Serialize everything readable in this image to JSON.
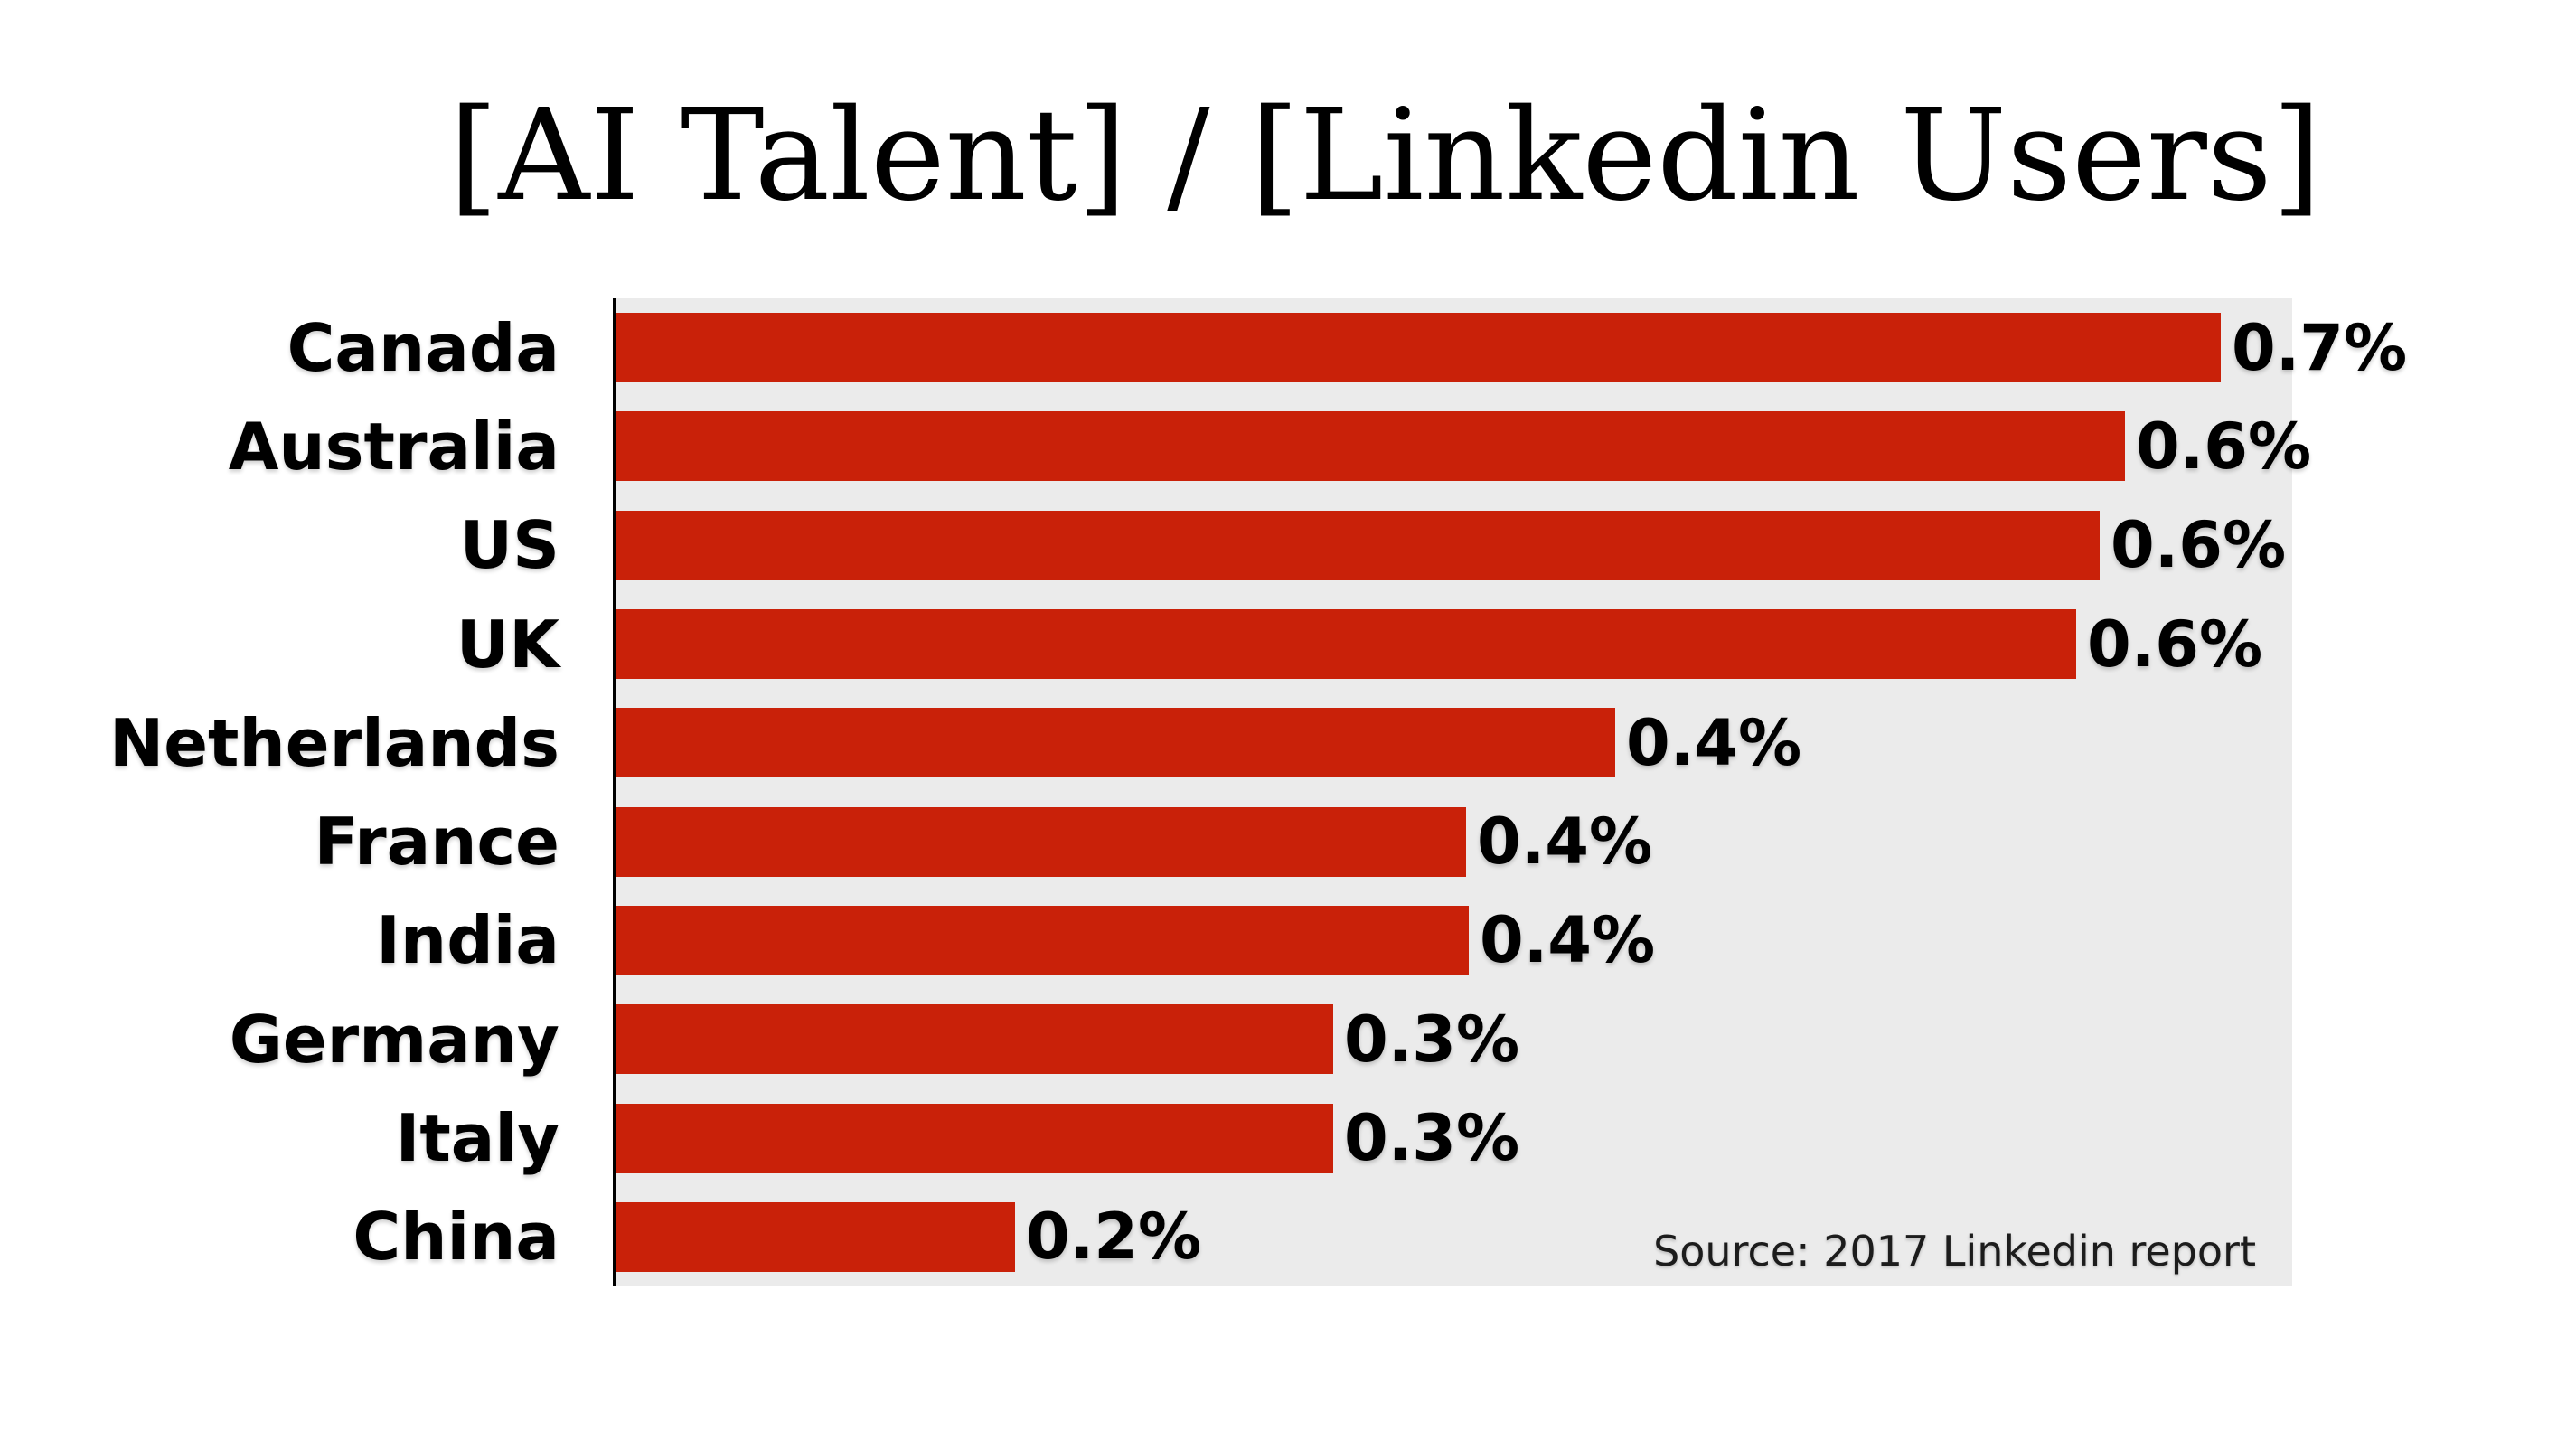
{
  "title": "[AI Talent] / [Linkedin Users]",
  "source_note": "Source: 2017 Linkedin report",
  "colors": {
    "bar": "#c92109",
    "plot_background": "#ebebeb",
    "axis_line": "#000000",
    "label_text": "#000000",
    "source_text": "#1c1c1c"
  },
  "chart_data": {
    "type": "bar",
    "orientation": "horizontal",
    "title": "[AI Talent] / [Linkedin Users]",
    "categories": [
      "Canada",
      "Australia",
      "US",
      "UK",
      "Netherlands",
      "France",
      "India",
      "Germany",
      "Italy",
      "China"
    ],
    "values": [
      0.7,
      0.6,
      0.6,
      0.6,
      0.4,
      0.4,
      0.4,
      0.3,
      0.3,
      0.2
    ],
    "value_labels": [
      "0.7%",
      "0.6%",
      "0.6%",
      "0.6%",
      "0.4%",
      "0.4%",
      "0.4%",
      "0.3%",
      "0.3%",
      "0.2%"
    ],
    "bar_lengths_pct_estimated": [
      0.7,
      0.658,
      0.647,
      0.637,
      0.436,
      0.371,
      0.372,
      0.313,
      0.313,
      0.174
    ],
    "xlim": [
      0,
      0.731
    ],
    "xlabel": "",
    "ylabel": "",
    "grid": false,
    "legend": false,
    "value_label_position": "outside-end",
    "annotation": "Source: 2017 Linkedin report"
  }
}
